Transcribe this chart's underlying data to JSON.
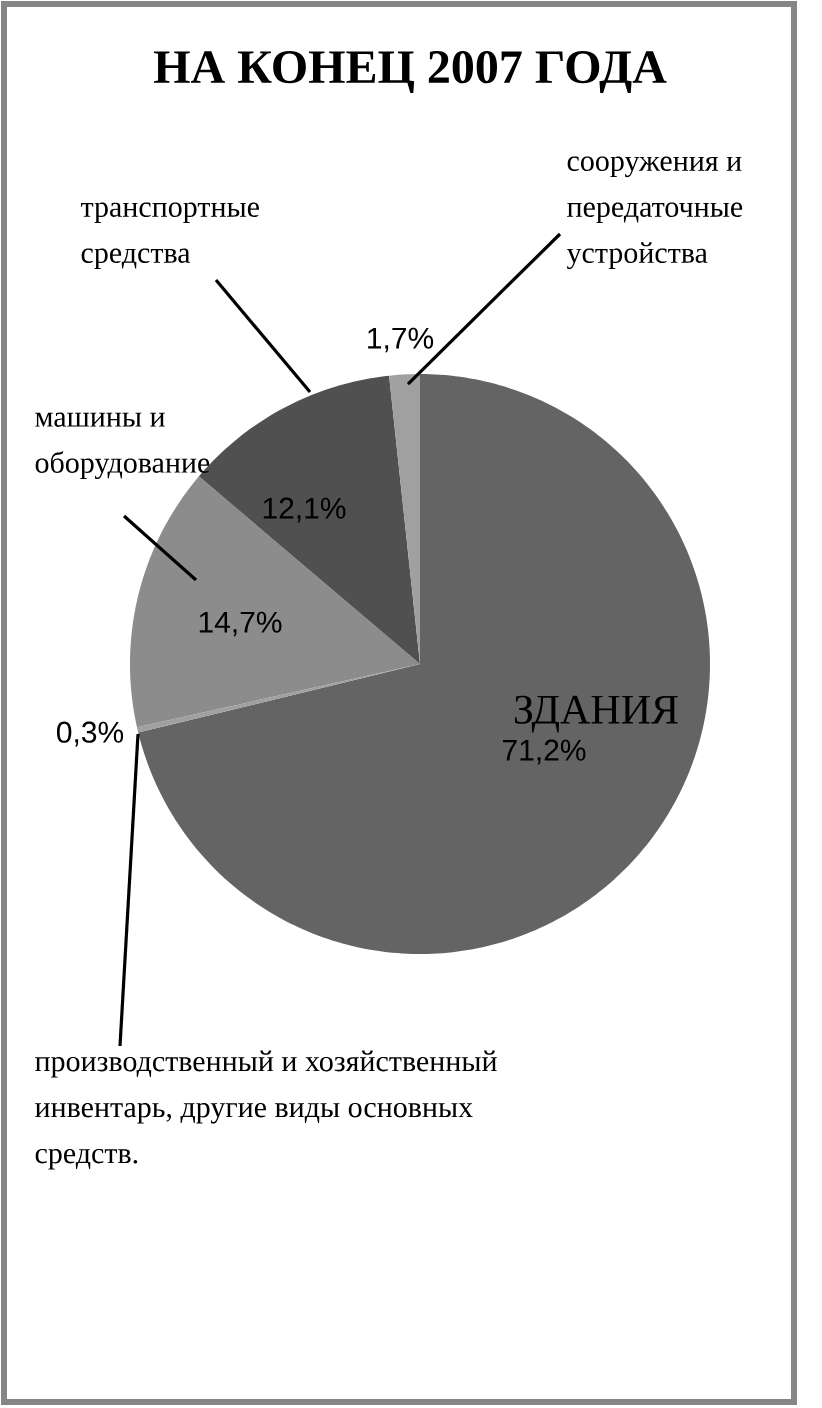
{
  "chart_data": {
    "type": "pie",
    "title": "НА КОНЕЦ 2007 ГОДА",
    "categories": [
      "ЗДАНИЯ",
      "производственный и хозяйственный инвентарь, другие виды основных средств.",
      "машины и оборудование",
      "транспортные средства",
      "сооружения и передаточные устройства"
    ],
    "values": [
      71.2,
      0.3,
      14.7,
      12.1,
      1.7
    ],
    "colors": [
      "#646464",
      "#a0a0a0",
      "#8c8c8c",
      "#505050",
      "#a0a0a0"
    ],
    "value_labels": [
      "71,2%",
      "0,3%",
      "14,7%",
      "12,1%",
      "1,7%"
    ]
  }
}
